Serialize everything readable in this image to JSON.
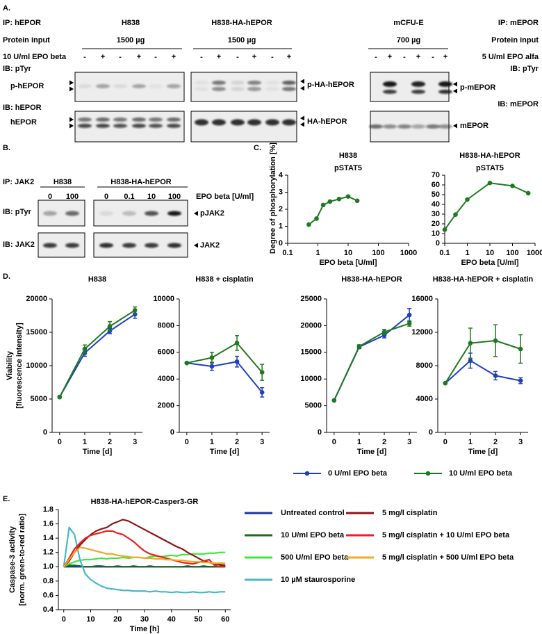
{
  "panel_a": {
    "label": "A.",
    "left": {
      "ip": "IP: hEPOR",
      "input": "Protein input",
      "treatment": "10 U/ml EPO beta",
      "ib_top": "IB: pTyr",
      "ib_bottom": "IB: hEPOR",
      "band_top": "p-hEPOR",
      "band_bottom": "hEPOR"
    },
    "right": {
      "ip": "IP: mEPOR",
      "input": "Protein input",
      "treatment": "5 U/ml EPO alfa",
      "ib_top": "IB: pTyr",
      "ib_bottom": "IB: mEPOR"
    },
    "groups": [
      {
        "name": "H838",
        "amount": "1500 µg",
        "lanes": [
          "-",
          "+",
          "-",
          "+",
          "-",
          "+"
        ]
      },
      {
        "name": "H838-HA-hEPOR",
        "amount": "1500 µg",
        "lanes": [
          "-",
          "+",
          "-",
          "+",
          "-",
          "+"
        ],
        "band_top": "p-HA-hEPOR",
        "band_bottom": "HA-hEPOR"
      },
      {
        "name": "mCFU-E",
        "amount": "700 µg",
        "lanes": [
          "-",
          "+",
          "-",
          "+",
          "-",
          "+"
        ],
        "band_top": "p-mEPOR",
        "band_bottom": "mEPOR"
      }
    ]
  },
  "panel_b": {
    "label": "B.",
    "ip": "IP: JAK2",
    "ib_top": "IB: pTyr",
    "ib_bottom": "IB: JAK2",
    "dose_label": "EPO beta [U/ml]",
    "band_top": "pJAK2",
    "band_bottom": "JAK2",
    "groups": [
      {
        "name": "H838",
        "lanes": [
          "0",
          "100"
        ]
      },
      {
        "name": "H838-HA-hEPOR",
        "lanes": [
          "0",
          "0.1",
          "10",
          "100"
        ]
      }
    ]
  },
  "panel_c": {
    "label": "C.",
    "ylabel": "Degree of  phosphorylation [%]"
  },
  "panel_d": {
    "label": "D.",
    "ylabel": [
      "Viability",
      "[fluorescence intensity]"
    ]
  },
  "panel_e": {
    "label": "E."
  },
  "chart_data": [
    {
      "type": "line",
      "title": "H838",
      "subtitle": "pSTAT5",
      "xlabel": "EPO beta [U/ml]",
      "xscale": "log",
      "markers": true,
      "x": [
        0.5,
        0.9,
        1.5,
        2.5,
        5,
        10,
        20
      ],
      "series": [
        {
          "color": "#1e7a1e",
          "values": [
            1.1,
            1.45,
            2.25,
            2.45,
            2.6,
            2.75,
            2.5
          ]
        }
      ],
      "xlim": [
        0.1,
        1000
      ],
      "xticks": [
        0.1,
        1,
        10,
        100,
        1000
      ],
      "ylim": [
        0,
        4
      ],
      "yticks": [
        0,
        1,
        2,
        3,
        4
      ]
    },
    {
      "type": "line",
      "title": "H838-HA-hEPOR",
      "subtitle": "pSTAT5",
      "xlabel": "EPO beta [U/ml]",
      "xscale": "log",
      "markers": true,
      "x": [
        0.1,
        0.3,
        1,
        10,
        100,
        500
      ],
      "series": [
        {
          "color": "#1e7a1e",
          "values": [
            14,
            29.5,
            45,
            62,
            59,
            51.5
          ]
        }
      ],
      "xlim": [
        0.1,
        1000
      ],
      "xticks": [
        0.1,
        1,
        10,
        100,
        1000
      ],
      "ylim": [
        0,
        70
      ],
      "yticks": [
        0,
        10,
        20,
        30,
        40,
        50,
        60,
        70
      ]
    },
    {
      "type": "line",
      "title": "H838",
      "xlabel": "Time [d]",
      "markers": true,
      "legend": "below",
      "x": [
        0,
        1,
        2,
        3
      ],
      "series": [
        {
          "name": "0 U/ml EPO beta",
          "color": "#1f3fbf",
          "values": [
            5300,
            11900,
            15200,
            17700
          ],
          "errors": [
            0,
            500,
            400,
            600
          ]
        },
        {
          "name": "10 U/ml EPO beta",
          "color": "#1e7a1e",
          "values": [
            5300,
            12500,
            15900,
            18300
          ],
          "errors": [
            0,
            600,
            700,
            500
          ]
        }
      ],
      "xlim": [
        -0.3,
        3.3
      ],
      "xticks": [
        0,
        1,
        2,
        3
      ],
      "ylim": [
        0,
        20000
      ],
      "yticks": [
        0,
        5000,
        10000,
        15000,
        20000
      ]
    },
    {
      "type": "line",
      "title": "H838 + cisplatin",
      "xlabel": "Time [d]",
      "markers": true,
      "x": [
        0,
        1,
        2,
        3
      ],
      "series": [
        {
          "color": "#1f3fbf",
          "values": [
            5200,
            4950,
            5300,
            3000
          ],
          "errors": [
            0,
            300,
            400,
            350
          ]
        },
        {
          "color": "#1e7a1e",
          "values": [
            5200,
            5600,
            6700,
            4500
          ],
          "errors": [
            0,
            400,
            550,
            600
          ]
        }
      ],
      "xlim": [
        -0.3,
        3.3
      ],
      "xticks": [
        0,
        1,
        2,
        3
      ],
      "ylim": [
        0,
        10000
      ],
      "yticks": [
        0,
        2000,
        4000,
        6000,
        8000,
        10000
      ]
    },
    {
      "type": "line",
      "title": "H838-HA-hEPOR",
      "xlabel": "Time [d]",
      "markers": true,
      "x": [
        0,
        1,
        2,
        3
      ],
      "series": [
        {
          "color": "#1f3fbf",
          "values": [
            6000,
            16000,
            18200,
            22000
          ],
          "errors": [
            0,
            300,
            500,
            1200
          ]
        },
        {
          "color": "#1e7a1e",
          "values": [
            6000,
            16100,
            18800,
            20400
          ],
          "errors": [
            0,
            300,
            500,
            500
          ]
        }
      ],
      "xlim": [
        -0.3,
        3.3
      ],
      "xticks": [
        0,
        1,
        2,
        3
      ],
      "ylim": [
        0,
        25000
      ],
      "yticks": [
        0,
        5000,
        10000,
        15000,
        20000,
        25000
      ]
    },
    {
      "type": "line",
      "title": "H838-HA-hEPOR + cisplatin",
      "xlabel": "Time [d]",
      "markers": true,
      "x": [
        0,
        1,
        2,
        3
      ],
      "series": [
        {
          "color": "#1f3fbf",
          "values": [
            5900,
            8600,
            6800,
            6200
          ],
          "errors": [
            0,
            900,
            500,
            350
          ]
        },
        {
          "color": "#1e7a1e",
          "values": [
            5900,
            10700,
            11000,
            10000
          ],
          "errors": [
            0,
            1800,
            1900,
            1700
          ]
        }
      ],
      "xlim": [
        -0.3,
        3.3
      ],
      "xticks": [
        0,
        1,
        2,
        3
      ],
      "ylim": [
        0,
        16000
      ],
      "yticks": [
        0,
        4000,
        8000,
        12000,
        16000
      ]
    },
    {
      "type": "line",
      "title": "H838-HA-hEPOR-Casper3-GR",
      "xlabel": "Time [h]",
      "ylabel": [
        "Caspase-3 activity",
        "[norm. green-to-red ratio]"
      ],
      "markers": false,
      "legend": "right",
      "x": [
        0,
        2,
        4,
        6,
        8,
        10,
        12,
        14,
        16,
        18,
        20,
        22,
        24,
        26,
        28,
        30,
        32,
        34,
        36,
        38,
        40,
        42,
        44,
        46,
        48,
        50,
        52,
        54,
        56,
        58,
        60
      ],
      "series": [
        {
          "name": "Untreated control",
          "color": "#1a2fb0",
          "values": [
            1,
            1,
            1,
            1,
            1,
            1,
            1,
            1,
            1,
            1,
            1,
            1,
            1,
            1,
            1,
            1,
            1,
            1,
            1,
            1,
            1,
            1,
            1,
            1,
            1,
            1,
            1,
            1,
            1,
            1,
            1
          ]
        },
        {
          "name": "10 U/ml EPO beta",
          "color": "#1a6b1a",
          "values": [
            1,
            1.02,
            1.02,
            1.01,
            1,
            1,
            1.01,
            1.01,
            1,
            1,
            1.01,
            1,
            1,
            1.01,
            1,
            1,
            1.01,
            1,
            1,
            1,
            1,
            1,
            1,
            1.01,
            1,
            1,
            1.01,
            1,
            1,
            1.01,
            1.01
          ]
        },
        {
          "name": "500 U/ml EPO beta",
          "color": "#3de83d",
          "values": [
            1,
            1.04,
            1.07,
            1.09,
            1.1,
            1.1,
            1.11,
            1.12,
            1.11,
            1.12,
            1.12,
            1.13,
            1.12,
            1.13,
            1.13,
            1.12,
            1.14,
            1.15,
            1.14,
            1.15,
            1.16,
            1.15,
            1.17,
            1.17,
            1.18,
            1.18,
            1.18,
            1.19,
            1.19,
            1.2,
            1.2
          ]
        },
        {
          "name": "10 µM staurosporine",
          "color": "#45b9c9",
          "values": [
            1,
            1.55,
            1.45,
            1.1,
            0.9,
            0.82,
            0.77,
            0.73,
            0.7,
            0.69,
            0.68,
            0.67,
            0.67,
            0.66,
            0.66,
            0.66,
            0.65,
            0.66,
            0.65,
            0.65,
            0.64,
            0.65,
            0.64,
            0.64,
            0.65,
            0.64,
            0.64,
            0.65,
            0.64,
            0.65,
            0.65
          ]
        },
        {
          "name": "5 mg/l cisplatin",
          "color": "#8c1414",
          "values": [
            1,
            1.08,
            1.2,
            1.3,
            1.38,
            1.45,
            1.5,
            1.53,
            1.55,
            1.6,
            1.63,
            1.66,
            1.64,
            1.6,
            1.56,
            1.52,
            1.48,
            1.44,
            1.4,
            1.36,
            1.32,
            1.28,
            1.25,
            1.2,
            1.16,
            1.12,
            1.08,
            1.06,
            1.04,
            1.03,
            1.02
          ]
        },
        {
          "name": "5 mg/l cisplatin + 10 U/ml EPO beta",
          "color": "#e8221e",
          "values": [
            1,
            1.12,
            1.25,
            1.33,
            1.4,
            1.44,
            1.46,
            1.48,
            1.5,
            1.5,
            1.47,
            1.45,
            1.4,
            1.35,
            1.28,
            1.22,
            1.18,
            1.16,
            1.14,
            1.12,
            1.1,
            1.08,
            1.06,
            1.05,
            1.04,
            1.06,
            1.08,
            1.1,
            1.02,
            1,
            1
          ]
        },
        {
          "name": "5 mg/l cisplatin + 500 U/ml EPO beta",
          "color": "#f5a623",
          "values": [
            1,
            1.1,
            1.2,
            1.27,
            1.26,
            1.24,
            1.22,
            1.2,
            1.18,
            1.18,
            1.16,
            1.15,
            1.14,
            1.13,
            1.13,
            1.12,
            1.12,
            1.11,
            1.11,
            1.1,
            1.1,
            1.09,
            1.09,
            1.08,
            1.07,
            1.07,
            1.06,
            1.06,
            1.05,
            1.05,
            1.05
          ]
        }
      ],
      "xlim": [
        -2,
        62
      ],
      "xticks": [
        0,
        10,
        20,
        30,
        40,
        50,
        60
      ],
      "ylim": [
        0.4,
        1.8
      ],
      "yticks": [
        0.4,
        0.6,
        0.8,
        {
          "value": 1,
          "label": "1.0"
        },
        1.2,
        1.4,
        1.6,
        1.8
      ]
    }
  ]
}
